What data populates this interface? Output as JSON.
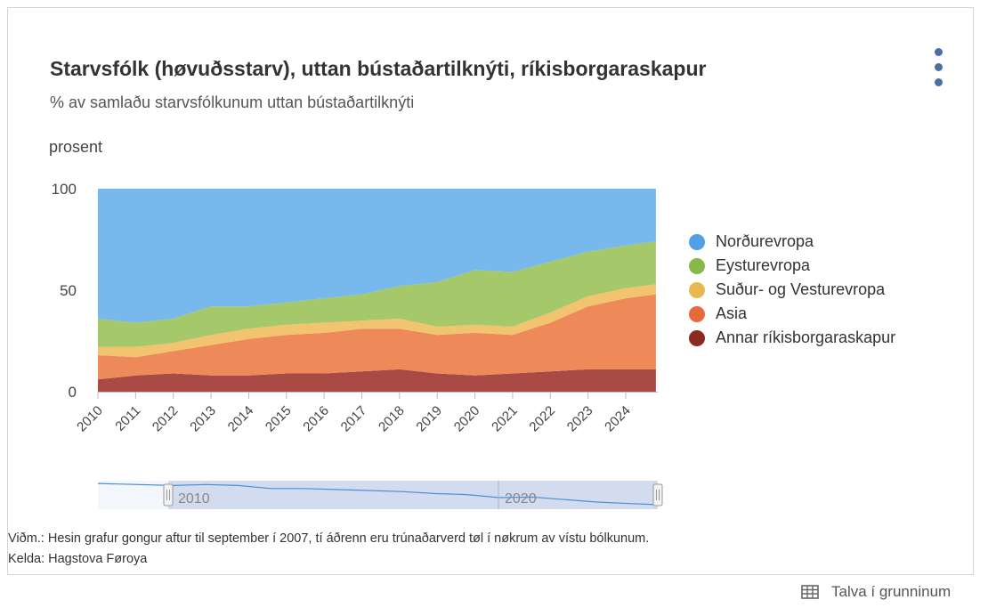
{
  "title": "Starvsfólk (høvuðsstarv), uttan bústaðartilknýti, ríkisborgaraskapur",
  "subtitle": "% av samlaðu starvsfólkunum uttan bústaðartilknýti",
  "note": "Viðm.: Hesin grafur gongur aftur til september í 2007, tí áðrenn eru trúnaðarverd tøl í nøkrum av vístu bólkunum.",
  "source": "Kelda: Hagstova Føroya",
  "table_link_label": "Talva í grunninum",
  "navigator_labels": [
    "2010",
    "2020"
  ],
  "colors": {
    "menu": "#4a6fa5",
    "navigator_mask": "#ccd6eb",
    "navigator_line": "#4a90d9"
  },
  "icons": {
    "menu": "more-vertical-icon",
    "table": "table-icon"
  },
  "chart_data": {
    "type": "area",
    "stacking": "percent",
    "ylabel": "prosent",
    "ylim": [
      0,
      100
    ],
    "yticks": [
      0,
      50,
      100
    ],
    "xlim": [
      2010,
      2024.85
    ],
    "xticks": [
      "2010",
      "2011",
      "2012",
      "2013",
      "2014",
      "2015",
      "2016",
      "2017",
      "2018",
      "2019",
      "2020",
      "2021",
      "2022",
      "2023",
      "2024"
    ],
    "legend_position": "right",
    "x": [
      2010,
      2011,
      2012,
      2013,
      2014,
      2015,
      2016,
      2017,
      2018,
      2019,
      2020,
      2021,
      2022,
      2023,
      2024,
      2024.8
    ],
    "series": [
      {
        "name": "Annar ríkisborgaraskapur",
        "color": "#a94a44",
        "values": [
          6,
          8,
          9,
          8,
          8,
          9,
          9,
          10,
          11,
          9,
          8,
          9,
          10,
          11,
          11,
          11
        ]
      },
      {
        "name": "Asia",
        "color": "#ee8a5a",
        "values": [
          12,
          9,
          11,
          15,
          18,
          19,
          20,
          21,
          20,
          19,
          21,
          19,
          24,
          31,
          35,
          37
        ]
      },
      {
        "name": "Suður- og Vesturevropa",
        "color": "#f2c46f",
        "values": [
          4,
          5,
          4,
          5,
          5,
          5,
          5,
          4,
          5,
          4,
          4,
          4,
          5,
          5,
          5,
          5
        ]
      },
      {
        "name": "Eysturevropa",
        "color": "#a4c86a",
        "values": [
          14,
          12,
          12,
          14,
          11,
          11,
          12,
          13,
          16,
          22,
          27,
          27,
          25,
          22,
          21,
          21
        ]
      },
      {
        "name": "Norðurevropa",
        "color": "#77b9ec",
        "values": [
          64,
          66,
          64,
          58,
          58,
          56,
          54,
          52,
          48,
          46,
          40,
          41,
          36,
          31,
          28,
          26
        ]
      }
    ]
  }
}
